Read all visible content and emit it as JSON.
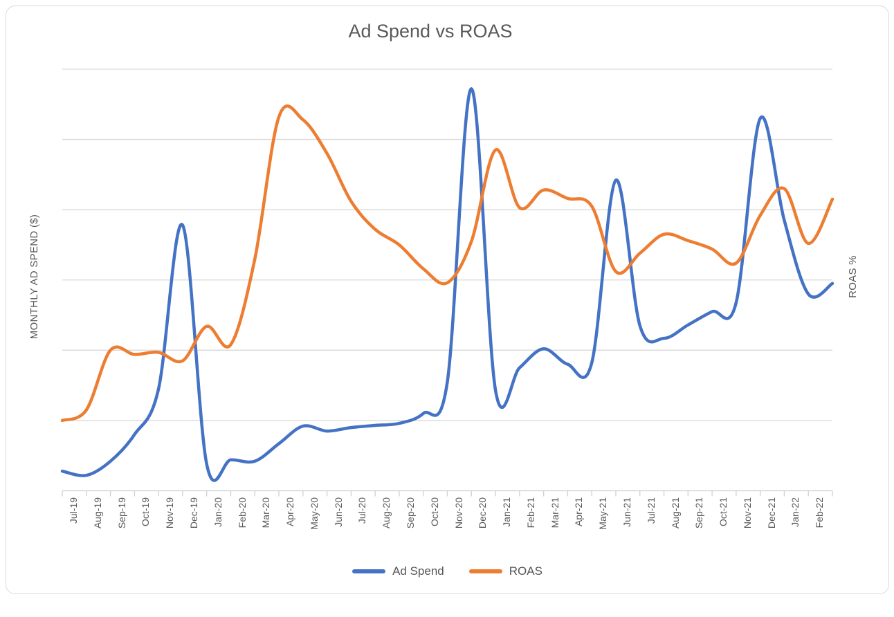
{
  "chart": {
    "title": "Ad Spend vs ROAS",
    "y_axis_left": {
      "title": "MONTHLY AD SPEND ($)",
      "tick_labels_visible": false
    },
    "y_axis_right": {
      "title": "ROAS %",
      "tick_labels_visible": false
    },
    "colors": {
      "ad_spend_line": "#4472C4",
      "roas_line": "#ED7D31",
      "gridline": "#D9D9D9",
      "axis_and_ticks": "#D0D0D0",
      "text": "#595959",
      "card_border": "#D9D9D9",
      "background": "#FFFFFF"
    }
  },
  "chart_data": {
    "type": "line",
    "smooth": true,
    "grid": "horizontal",
    "legend_position": "bottom",
    "x_labels": [
      "Jul-19",
      "Aug-19",
      "Sep-19",
      "Oct-19",
      "Nov-19",
      "Dec-19",
      "Jan-20",
      "Feb-20",
      "Mar-20",
      "Apr-20",
      "May-20",
      "Jun-20",
      "Jul-20",
      "Aug-20",
      "Sep-20",
      "Oct-20",
      "Nov-20",
      "Dec-20",
      "Jan-21",
      "Feb-21",
      "Mar-21",
      "Apr-21",
      "May-21",
      "Jun-21",
      "Jul-21",
      "Aug-21",
      "Sep-21",
      "Oct-21",
      "Nov-21",
      "Dec-21",
      "Jan-22",
      "Feb-22"
    ],
    "value_units": "relative gridline units (both y axes unlabeled); 0 = x-axis, 6 = top gridline",
    "ylim": [
      0,
      6
    ],
    "note": "both curves extend one unlabeled month slot past Feb-22 (final value in each series)",
    "series": [
      {
        "name": "Ad Spend",
        "axis": "left",
        "color": "#4472C4",
        "values": [
          0.28,
          0.22,
          0.42,
          0.8,
          1.45,
          3.78,
          0.38,
          0.44,
          0.42,
          0.67,
          0.92,
          0.85,
          0.9,
          0.93,
          0.96,
          1.1,
          1.55,
          5.72,
          1.43,
          1.75,
          2.02,
          1.8,
          1.82,
          4.42,
          2.35,
          2.17,
          2.36,
          2.55,
          2.68,
          5.3,
          3.85,
          2.8,
          2.95
        ]
      },
      {
        "name": "ROAS",
        "axis": "right",
        "color": "#ED7D31",
        "values": [
          1.0,
          1.15,
          2.0,
          1.94,
          1.97,
          1.85,
          2.34,
          2.08,
          3.3,
          5.32,
          5.28,
          4.8,
          4.12,
          3.72,
          3.5,
          3.16,
          2.96,
          3.55,
          4.85,
          4.03,
          4.28,
          4.16,
          4.05,
          3.12,
          3.38,
          3.65,
          3.56,
          3.44,
          3.24,
          3.92,
          4.3,
          3.52,
          4.15
        ]
      }
    ]
  }
}
